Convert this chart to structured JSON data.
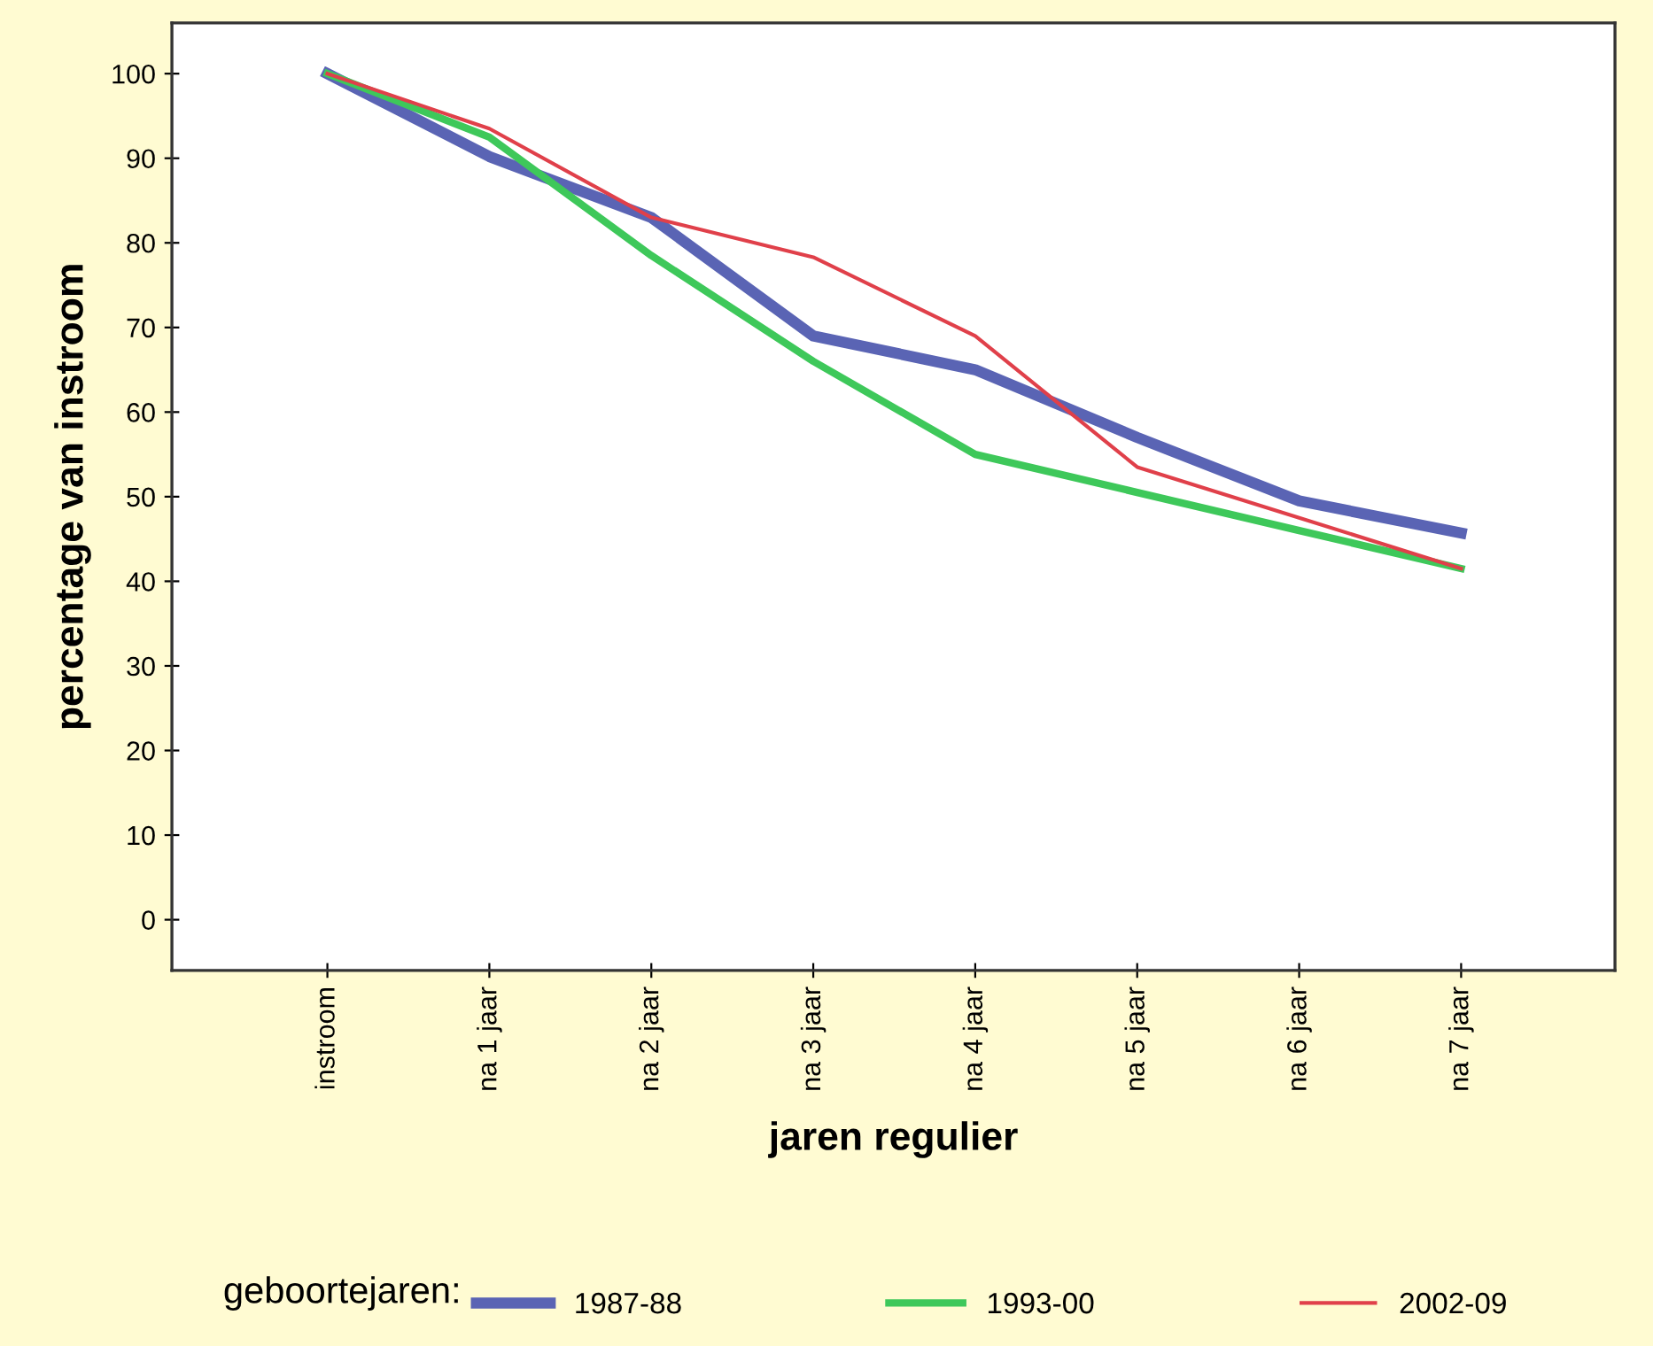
{
  "chart_data": {
    "type": "line",
    "xlabel": "jaren regulier",
    "ylabel": "percentage van instroom",
    "legend_title": "geboortejaren:",
    "legend": "bottom",
    "grid": false,
    "marker": "none",
    "line_style": "solid",
    "categories": [
      "instroom",
      "na 1 jaar",
      "na 2 jaar",
      "na 3 jaar",
      "na 4 jaar",
      "na 5 jaar",
      "na 6 jaar",
      "na 7 jaar"
    ],
    "ylim": [
      -6,
      106
    ],
    "yticks": [
      0,
      10,
      20,
      30,
      40,
      50,
      60,
      70,
      80,
      90,
      100
    ],
    "series": [
      {
        "name": "1987-88",
        "color": "#5a64b4",
        "values": [
          100,
          90.2,
          83,
          69,
          65,
          57,
          49.5,
          45.7
        ]
      },
      {
        "name": "1993-00",
        "color": "#3ec85a",
        "values": [
          100,
          92.5,
          78.5,
          66,
          55,
          50.5,
          46,
          41.5
        ]
      },
      {
        "name": "2002-09",
        "color": "#e0404a",
        "values": [
          100,
          93.5,
          83,
          78.3,
          69,
          53.5,
          47.5,
          41.5
        ]
      }
    ]
  }
}
